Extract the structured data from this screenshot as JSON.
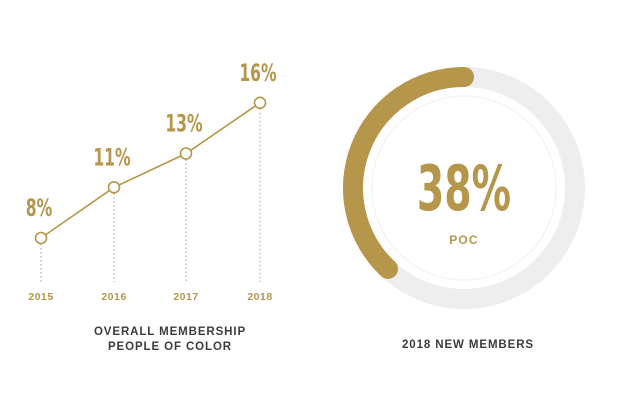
{
  "chart_data": [
    {
      "type": "line",
      "x": [
        "2015",
        "2016",
        "2017",
        "2018"
      ],
      "values": [
        8,
        11,
        13,
        16
      ],
      "value_labels": [
        "8%",
        "11%",
        "13%",
        "16%"
      ],
      "unit": "%",
      "title_lines": [
        "OVERALL MEMBERSHIP",
        "PEOPLE OF COLOR"
      ],
      "grid": false,
      "drop_lines": true
    },
    {
      "type": "pie",
      "variant": "donut-gauge",
      "value": 38,
      "value_label": "38%",
      "sublabel": "POC",
      "title": "2018 NEW MEMBERS"
    }
  ],
  "colors": {
    "accent": "#b5964a",
    "track": "#eeeeee",
    "inner_ring": "#f2f2f2",
    "dotted": "#b3b3b3",
    "caption": "#3c3c3c"
  }
}
